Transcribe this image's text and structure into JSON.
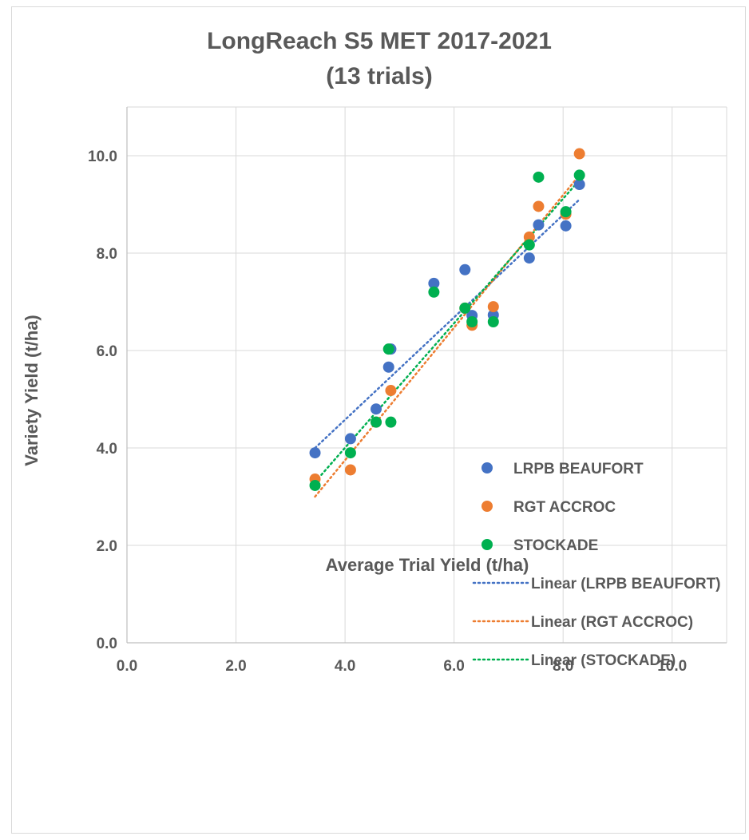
{
  "chart_data": {
    "type": "scatter",
    "title": "LongReach S5 MET 2017-2021",
    "subtitle": "(13 trials)",
    "xlabel": "Average Trial Yield (t/ha)",
    "ylabel": "Variety Yield (t/ha)",
    "xlim": [
      0,
      11
    ],
    "ylim": [
      0,
      11
    ],
    "x_ticks": [
      "0.0",
      "2.0",
      "4.0",
      "6.0",
      "8.0",
      "10.0"
    ],
    "y_ticks": [
      "0.0",
      "2.0",
      "4.0",
      "6.0",
      "8.0",
      "10.0"
    ],
    "grid": true,
    "legend_position": "right",
    "series": [
      {
        "name": "LRPB BEAUFORT",
        "color": "#4472C4",
        "points": [
          [
            3.45,
            3.9
          ],
          [
            4.1,
            4.19
          ],
          [
            4.57,
            4.8
          ],
          [
            4.8,
            5.66
          ],
          [
            4.84,
            6.03
          ],
          [
            5.63,
            7.38
          ],
          [
            6.2,
            7.66
          ],
          [
            6.33,
            6.72
          ],
          [
            6.72,
            6.73
          ],
          [
            7.38,
            7.9
          ],
          [
            7.55,
            8.58
          ],
          [
            8.05,
            8.56
          ],
          [
            8.3,
            9.41
          ]
        ]
      },
      {
        "name": "RGT ACCROC",
        "color": "#ED7D31",
        "points": [
          [
            3.45,
            3.36
          ],
          [
            4.1,
            3.55
          ],
          [
            4.57,
            4.53
          ],
          [
            4.84,
            5.18
          ],
          [
            6.2,
            6.87
          ],
          [
            6.33,
            6.52
          ],
          [
            6.72,
            6.9
          ],
          [
            7.38,
            8.33
          ],
          [
            7.55,
            8.96
          ],
          [
            8.05,
            8.8
          ],
          [
            8.3,
            10.04
          ]
        ]
      },
      {
        "name": "STOCKADE",
        "color": "#00B050",
        "points": [
          [
            3.45,
            3.23
          ],
          [
            4.1,
            3.9
          ],
          [
            4.57,
            4.53
          ],
          [
            4.8,
            6.03
          ],
          [
            4.84,
            4.53
          ],
          [
            5.63,
            7.2
          ],
          [
            6.2,
            6.87
          ],
          [
            6.33,
            6.59
          ],
          [
            6.72,
            6.59
          ],
          [
            7.38,
            8.17
          ],
          [
            7.55,
            9.56
          ],
          [
            8.05,
            8.85
          ],
          [
            8.3,
            9.6
          ]
        ]
      }
    ],
    "trendlines": [
      {
        "name": "Linear (LRPB BEAUFORT)",
        "color": "#4472C4",
        "x": [
          3.45,
          8.3
        ],
        "y": [
          4.0,
          9.1
        ]
      },
      {
        "name": "Linear (RGT ACCROC)",
        "color": "#ED7D31",
        "x": [
          3.45,
          8.3
        ],
        "y": [
          3.0,
          9.6
        ]
      },
      {
        "name": "Linear (STOCKADE)",
        "color": "#00B050",
        "x": [
          3.45,
          8.3
        ],
        "y": [
          3.3,
          9.5
        ]
      }
    ]
  }
}
